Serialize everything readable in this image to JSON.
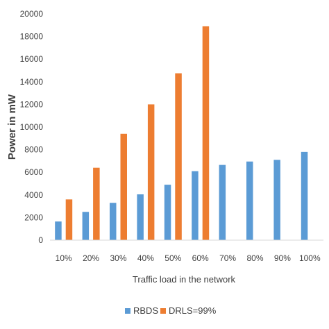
{
  "chart_data": {
    "type": "bar",
    "categories": [
      "10%",
      "20%",
      "30%",
      "40%",
      "50%",
      "60%",
      "70%",
      "80%",
      "90%",
      "100%"
    ],
    "series": [
      {
        "name": "RBDS",
        "color": "#5B9BD5",
        "values": [
          1650,
          2500,
          3300,
          4050,
          4900,
          6100,
          6650,
          6950,
          7100,
          7800
        ]
      },
      {
        "name": "DRLS=99%",
        "color": "#ED7D31",
        "values": [
          3600,
          6400,
          9400,
          12000,
          14750,
          18900,
          null,
          null,
          null,
          null
        ]
      }
    ],
    "xlabel": "Traffic load in the network",
    "ylabel": "Power in mW",
    "ylim": [
      0,
      20000
    ],
    "yticks": [
      0,
      2000,
      4000,
      6000,
      8000,
      10000,
      12000,
      14000,
      16000,
      18000,
      20000
    ],
    "grid": false,
    "legend_position": "bottom"
  }
}
